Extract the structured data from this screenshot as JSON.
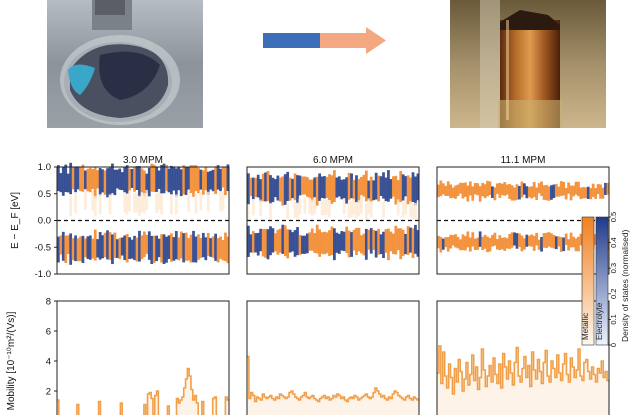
{
  "figure": {
    "arrow_colors": {
      "left": "#3d6fb8",
      "right": "#f4a882"
    },
    "colors": {
      "blue": "#27408b",
      "orange": "#f28a2e",
      "light": "#fde8d2",
      "mobility_line": "#f0a04a"
    }
  },
  "chart_data": [
    {
      "type": "heatmap",
      "title": "3.0 MPM",
      "ylabel": "E − E_F [eV]",
      "ylim": [
        -1.0,
        1.0
      ],
      "yticks": [
        "1.0",
        "0.5",
        "0.0",
        "-0.5",
        "-1.0"
      ],
      "band_edges": {
        "upper": 0.75,
        "lower": -0.5
      },
      "description": "band-edge density of states along a trajectory"
    },
    {
      "type": "heatmap",
      "title": "6.0 MPM",
      "ylim": [
        -1.0,
        1.0
      ],
      "band_edges": {
        "upper": 0.6,
        "lower": -0.4
      }
    },
    {
      "type": "heatmap",
      "title": "11.1 MPM",
      "ylim": [
        -1.0,
        1.0
      ],
      "band_edges": {
        "upper": 0.55,
        "lower": -0.4
      }
    },
    {
      "type": "line",
      "ylabel": "Mobility [10⁻¹⁰m²/(Vs)]",
      "ylim": [
        0,
        8
      ],
      "yticks": [
        "8",
        "6",
        "4",
        "2",
        "0"
      ],
      "series": [
        {
          "values": [
            1.4,
            0,
            0,
            0,
            0,
            0,
            0,
            0,
            0,
            0,
            0,
            1.1,
            0,
            0,
            0,
            0,
            0,
            0,
            0,
            0,
            0,
            0,
            0,
            1.3,
            0,
            0,
            0,
            0,
            0,
            0,
            0,
            0,
            0,
            0,
            0,
            1.2,
            0,
            0,
            0,
            0,
            0,
            0,
            0,
            0,
            0,
            0,
            0,
            0,
            1.1,
            0,
            1.8,
            1.9,
            1.5,
            0,
            1.7,
            2.0,
            0,
            0,
            0,
            0,
            0,
            1.0,
            0,
            0,
            0,
            0,
            1.5,
            1.2,
            1.4,
            1.6,
            2.2,
            2.8,
            3.5,
            3.0,
            2.1,
            1.4,
            1.7,
            1.2,
            0,
            0,
            1.3,
            0,
            0,
            0,
            0,
            0,
            1.5,
            1.6,
            0,
            0,
            0,
            0,
            0,
            1.6,
            1.4
          ]
        }
      ]
    },
    {
      "type": "line",
      "ylim": [
        0,
        8
      ],
      "series": [
        {
          "values": [
            4.3,
            1.5,
            1.9,
            1.7,
            1.3,
            1.6,
            1.5,
            1.4,
            1.8,
            1.6,
            1.5,
            1.6,
            1.7,
            1.5,
            1.4,
            1.6,
            1.5,
            1.8,
            1.7,
            1.6,
            1.5,
            1.6,
            1.9,
            2.0,
            1.8,
            1.6,
            1.5,
            1.4,
            1.6,
            1.7,
            1.9,
            1.6,
            1.5,
            1.6,
            1.7,
            1.5,
            1.4,
            1.3,
            1.5,
            1.6,
            1.7,
            1.5,
            1.6,
            1.4,
            1.5,
            1.7,
            1.6,
            1.8,
            1.7,
            1.5,
            1.6,
            1.4,
            1.3,
            1.5,
            1.6,
            1.5,
            1.7,
            1.6,
            1.4,
            1.5,
            1.6,
            1.7,
            1.8,
            1.6,
            1.5,
            1.6,
            1.9,
            2.2,
            2.0,
            1.8,
            1.6,
            1.7,
            1.5,
            1.4,
            1.6,
            1.5,
            1.8,
            2.0,
            1.9,
            1.7,
            1.6,
            1.5,
            1.4,
            1.6,
            1.7,
            1.5,
            1.4,
            1.6,
            1.5,
            1.4
          ]
        }
      ]
    },
    {
      "type": "line",
      "ylim": [
        0,
        8
      ],
      "series": [
        {
          "values": [
            3.2,
            5.0,
            2.5,
            4.6,
            3.0,
            2.2,
            3.8,
            2.9,
            1.8,
            3.5,
            2.6,
            4.1,
            3.3,
            2.0,
            2.8,
            3.9,
            2.4,
            3.1,
            4.4,
            2.7,
            3.6,
            2.1,
            2.9,
            4.8,
            3.4,
            2.3,
            3.0,
            3.7,
            2.6,
            4.2,
            3.1,
            2.5,
            3.8,
            2.2,
            4.5,
            3.6,
            2.8,
            4.0,
            3.2,
            2.4,
            3.9,
            4.9,
            3.0,
            2.6,
            3.5,
            4.3,
            2.9,
            3.7,
            2.3,
            4.6,
            3.4,
            2.8,
            4.1,
            3.3,
            2.5,
            3.9,
            4.7,
            3.0,
            2.6,
            4.0,
            3.5,
            2.9,
            4.4,
            3.2,
            2.7,
            3.8,
            4.5,
            3.1,
            2.6,
            4.2,
            3.6,
            2.9,
            3.4,
            4.8,
            3.0,
            2.7,
            3.9,
            4.1,
            3.3,
            2.8,
            3.6,
            3.1,
            2.6,
            3.5,
            3.2,
            4.0,
            2.9,
            3.3,
            2.7
          ]
        }
      ]
    }
  ],
  "colorbar": {
    "ticks": [
      "0.5",
      "0.4",
      "0.3",
      "0.2",
      "0.1",
      "0"
    ],
    "label": "Density of states (normalised)",
    "categories": [
      "Metallic",
      "Electrolyte"
    ]
  }
}
